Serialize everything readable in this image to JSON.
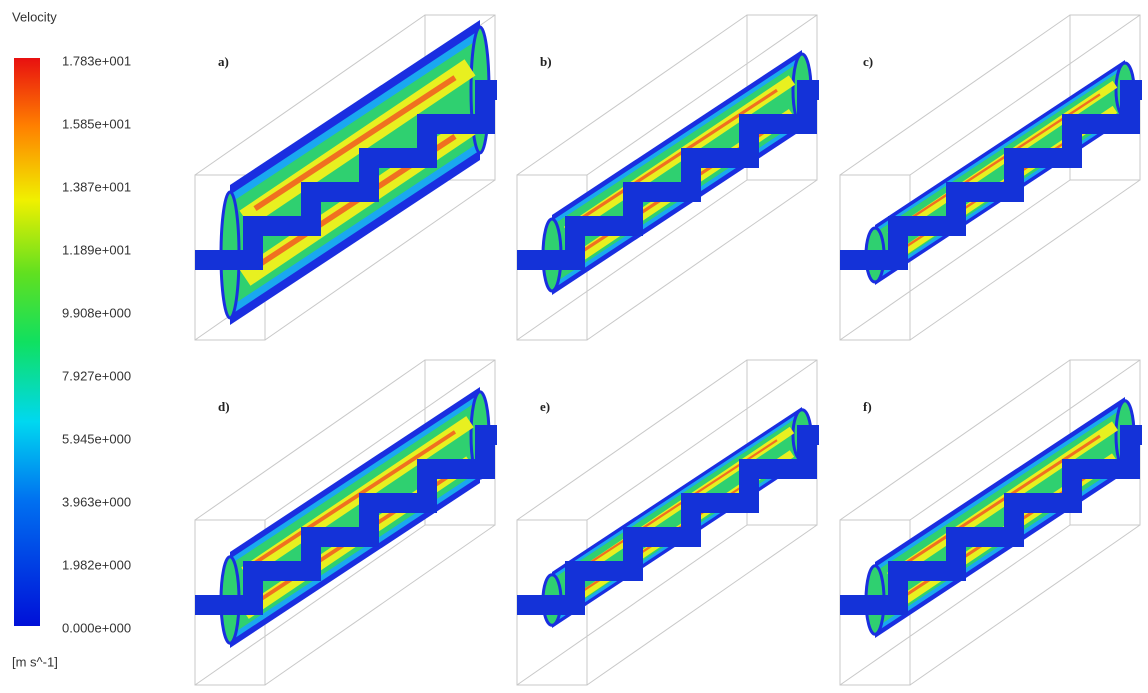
{
  "legend": {
    "title": "Velocity",
    "labels": [
      "1.783e+001",
      "1.585e+001",
      "1.387e+001",
      "1.189e+001",
      "9.908e+000",
      "7.927e+000",
      "5.945e+000",
      "3.963e+000",
      "1.982e+000",
      "0.000e+000"
    ],
    "unit": "[m s^-1]"
  },
  "panels": [
    {
      "label": "a)"
    },
    {
      "label": "b)"
    },
    {
      "label": "c)"
    },
    {
      "label": "d)"
    },
    {
      "label": "e)"
    },
    {
      "label": "f)"
    }
  ]
}
